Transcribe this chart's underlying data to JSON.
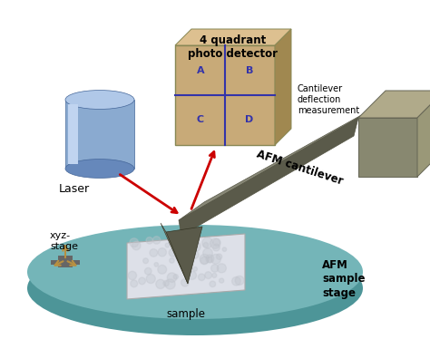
{
  "background_color": "#ffffff",
  "fig_width": 4.74,
  "fig_height": 3.74,
  "dpi": 100,
  "labels": {
    "laser": "Laser",
    "photo_detector": "4 quadrant\nphoto detector",
    "cantilever_deflection": "Cantilever\ndeflection\nmeasurement",
    "afm_cantilever": "AFM cantilever",
    "xyz_stage": "xyz-\nstage",
    "sample": "sample",
    "afm_sample_stage": "AFM\nsample\nstage"
  },
  "quadrant_labels": [
    "A",
    "B",
    "C",
    "D"
  ],
  "colors": {
    "background": "#ffffff",
    "laser_body": "#8aaad0",
    "laser_top": "#b0c8e8",
    "laser_bottom": "#6688bb",
    "cantilever_top": "#888877",
    "cantilever_side": "#5a5a4a",
    "cantilever_bottom": "#666655",
    "tip_front": "#666655",
    "tip_side": "#888877",
    "stage_top": "#74b5b8",
    "stage_side": "#4d9598",
    "sample_color": "#dde0e8",
    "sample_edge": "#aaaaaa",
    "detector_face": "#c8aa78",
    "detector_top": "#ddc090",
    "detector_right": "#a08850",
    "detector_grid": "#3333aa",
    "arrow_color": "#cc0000",
    "xyz_arrows": "#b89040",
    "xyz_icon": "#555555",
    "text_color": "#000000",
    "chip_top": "#b0aa8a",
    "chip_front": "#888870",
    "chip_right": "#9a9878",
    "chip_dark": "#6a6855"
  }
}
